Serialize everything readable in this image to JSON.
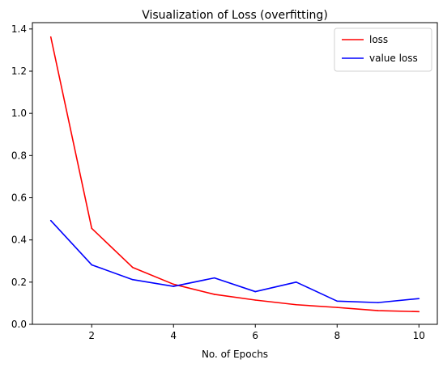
{
  "chart_data": {
    "type": "line",
    "title": "Visualization of Loss (overfitting)",
    "xlabel": "No. of Epochs",
    "ylabel": "",
    "x": [
      1,
      2,
      3,
      4,
      5,
      6,
      7,
      8,
      9,
      10
    ],
    "xlim": [
      0.55,
      10.45
    ],
    "ylim": [
      0,
      1.43
    ],
    "xticks": [
      2,
      4,
      6,
      8,
      10
    ],
    "yticks": [
      0.0,
      0.2,
      0.4,
      0.6,
      0.8,
      1.0,
      1.2,
      1.4
    ],
    "grid": false,
    "legend_position": "top-right",
    "series": [
      {
        "name": "loss",
        "color": "#ff0000",
        "values": [
          1.362,
          0.455,
          0.27,
          0.19,
          0.142,
          0.115,
          0.093,
          0.08,
          0.065,
          0.06
        ]
      },
      {
        "name": "value loss",
        "color": "#0000ff",
        "values": [
          0.492,
          0.282,
          0.212,
          0.18,
          0.22,
          0.155,
          0.2,
          0.11,
          0.103,
          0.122
        ]
      }
    ]
  }
}
